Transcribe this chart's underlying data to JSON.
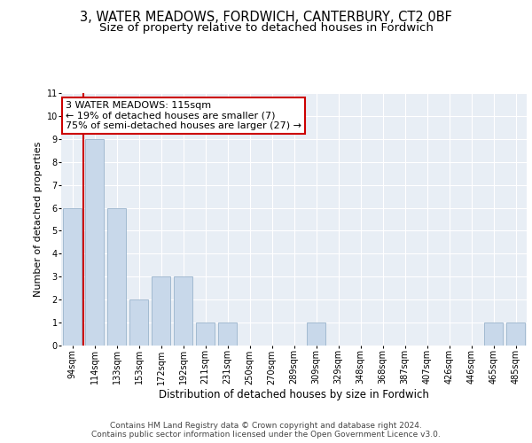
{
  "title": "3, WATER MEADOWS, FORDWICH, CANTERBURY, CT2 0BF",
  "subtitle": "Size of property relative to detached houses in Fordwich",
  "xlabel": "Distribution of detached houses by size in Fordwich",
  "ylabel": "Number of detached properties",
  "categories": [
    "94sqm",
    "114sqm",
    "133sqm",
    "153sqm",
    "172sqm",
    "192sqm",
    "211sqm",
    "231sqm",
    "250sqm",
    "270sqm",
    "289sqm",
    "309sqm",
    "329sqm",
    "348sqm",
    "368sqm",
    "387sqm",
    "407sqm",
    "426sqm",
    "446sqm",
    "465sqm",
    "485sqm"
  ],
  "values": [
    6,
    9,
    6,
    2,
    3,
    3,
    1,
    1,
    0,
    0,
    0,
    1,
    0,
    0,
    0,
    0,
    0,
    0,
    0,
    1,
    1
  ],
  "bar_color": "#c8d8ea",
  "bar_edgecolor": "#9ab4cc",
  "subject_line_color": "#cc0000",
  "annotation_text": "3 WATER MEADOWS: 115sqm\n← 19% of detached houses are smaller (7)\n75% of semi-detached houses are larger (27) →",
  "annotation_box_edgecolor": "#cc0000",
  "ylim": [
    0,
    11
  ],
  "yticks": [
    0,
    1,
    2,
    3,
    4,
    5,
    6,
    7,
    8,
    9,
    10,
    11
  ],
  "fig_background": "#ffffff",
  "plot_background": "#e8eef5",
  "grid_color": "#ffffff",
  "footer_text": "Contains HM Land Registry data © Crown copyright and database right 2024.\nContains public sector information licensed under the Open Government Licence v3.0.",
  "title_fontsize": 10.5,
  "subtitle_fontsize": 9.5,
  "xlabel_fontsize": 8.5,
  "ylabel_fontsize": 8,
  "tick_fontsize": 7,
  "annotation_fontsize": 8,
  "footer_fontsize": 6.5
}
